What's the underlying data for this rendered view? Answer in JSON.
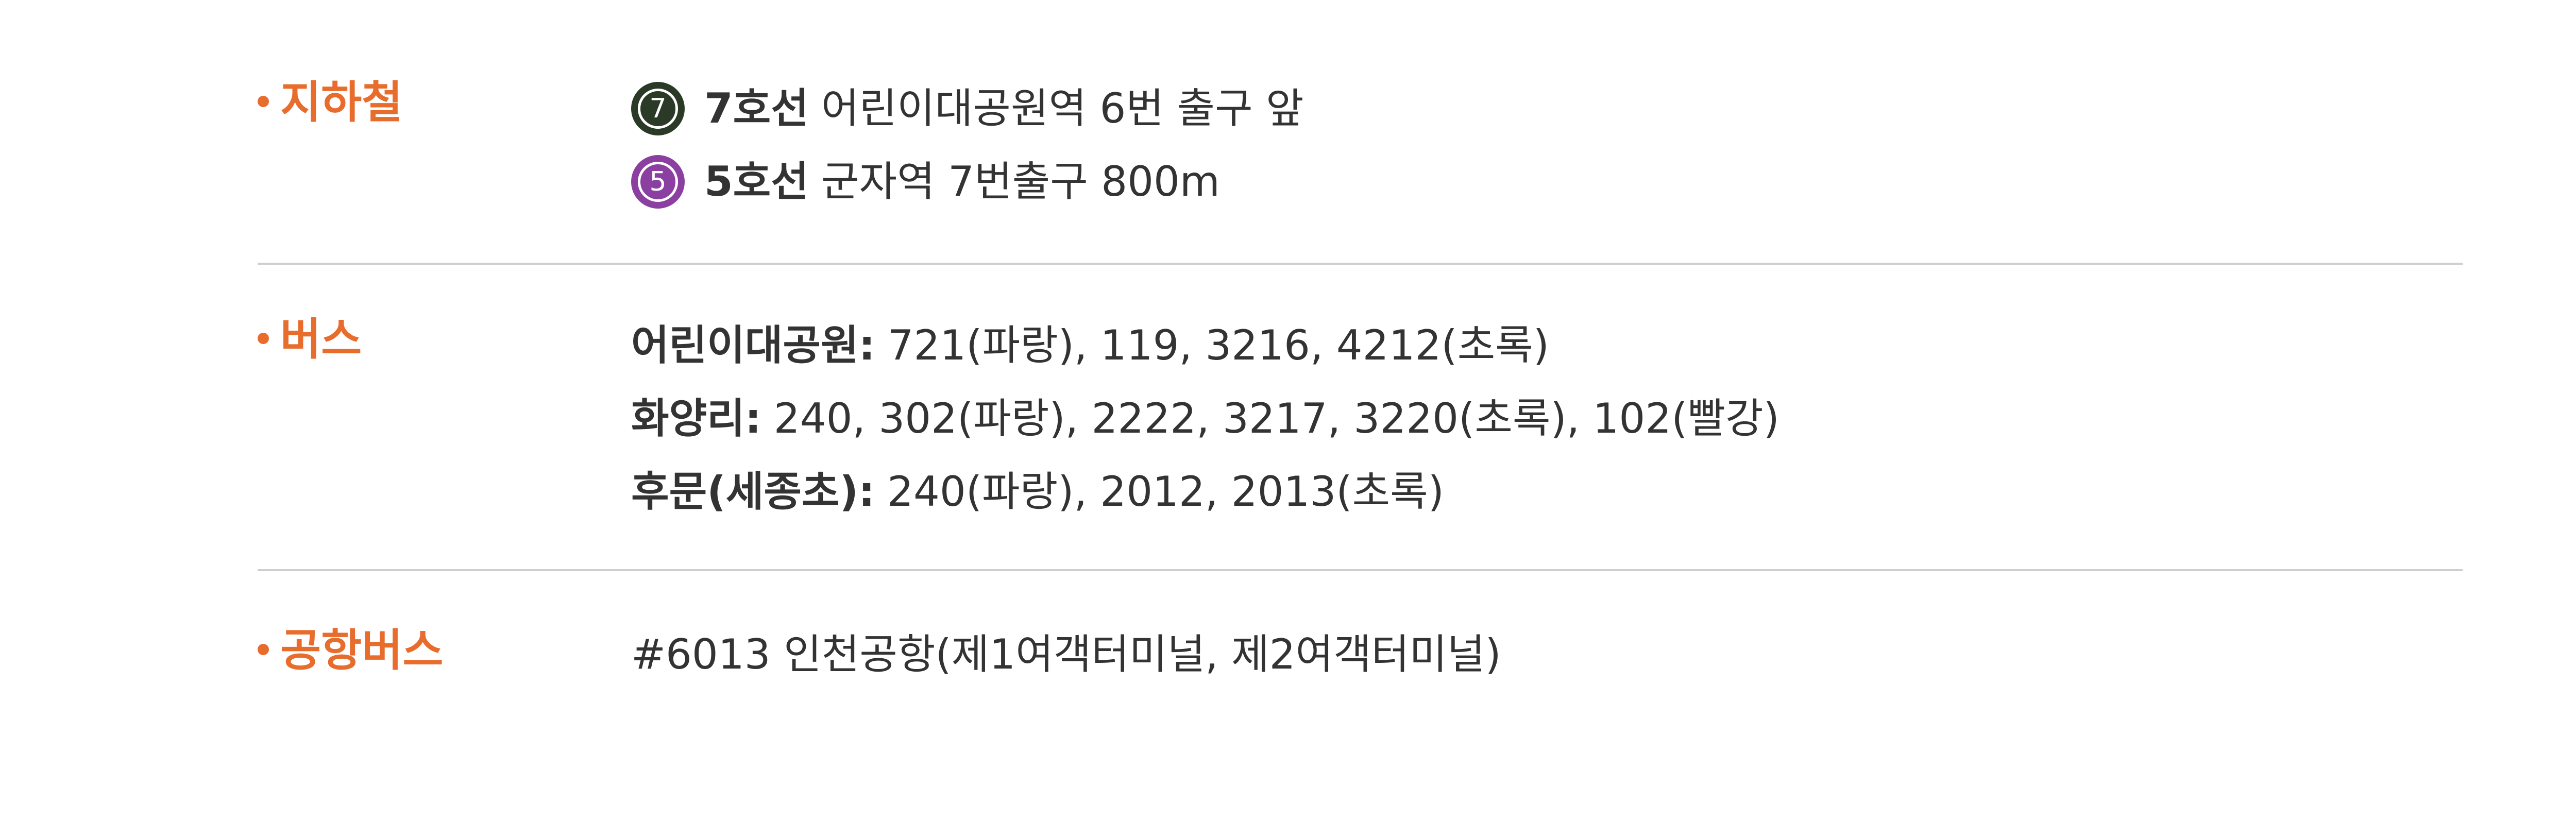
{
  "colors": {
    "accent": "#e86c2c",
    "text": "#333333",
    "divider": "#cfcfcf",
    "line7": "#2b3a26",
    "line5": "#8b3fa0"
  },
  "subway": {
    "title": "지하철",
    "lines": [
      {
        "badge": "7",
        "line": "7호선",
        "desc": "어린이대공원역 6번 출구 앞"
      },
      {
        "badge": "5",
        "line": "5호선",
        "desc": "군자역 7번출구 800m"
      }
    ]
  },
  "bus": {
    "title": "버스",
    "stops": [
      {
        "stop": "어린이대공원:",
        "routes": "721(파랑), 119, 3216, 4212(초록)"
      },
      {
        "stop": "화양리:",
        "routes": "240, 302(파랑), 2222, 3217, 3220(초록), 102(빨강)"
      },
      {
        "stop": "후문(세종초):",
        "routes": "240(파랑), 2012, 2013(초록)"
      }
    ]
  },
  "airport_bus": {
    "title": "공항버스",
    "desc": "#6013 인천공항(제1여객터미널, 제2여객터미널)"
  }
}
